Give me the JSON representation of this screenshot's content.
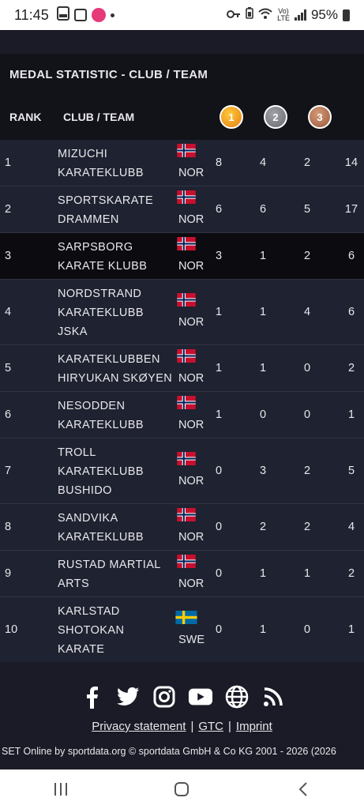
{
  "status": {
    "time": "11:45",
    "battery": "95%",
    "volte_line1": "Vo)",
    "volte_line2": "LTE"
  },
  "table": {
    "title": "MEDAL STATISTIC - CLUB / TEAM",
    "col_rank": "RANK",
    "col_club": "CLUB / TEAM",
    "medal_gold": "1",
    "medal_silver": "2",
    "medal_bronze": "3",
    "rows": [
      {
        "rank": "1",
        "club": "MIZUCHI KARATEKLUBB",
        "nation": "NOR",
        "gold": "8",
        "silver": "4",
        "bronze": "2",
        "total": "14"
      },
      {
        "rank": "2",
        "club": "SPORTSKARATE DRAMMEN",
        "nation": "NOR",
        "gold": "6",
        "silver": "6",
        "bronze": "5",
        "total": "17"
      },
      {
        "rank": "3",
        "club": "SARPSBORG KARATE KLUBB",
        "nation": "NOR",
        "gold": "3",
        "silver": "1",
        "bronze": "2",
        "total": "6"
      },
      {
        "rank": "4",
        "club": "NORDSTRAND KARATEKLUBB JSKA",
        "nation": "NOR",
        "gold": "1",
        "silver": "1",
        "bronze": "4",
        "total": "6"
      },
      {
        "rank": "5",
        "club": "KARATEKLUBBEN HIRYUKAN SKØYEN",
        "nation": "NOR",
        "gold": "1",
        "silver": "1",
        "bronze": "0",
        "total": "2"
      },
      {
        "rank": "6",
        "club": "NESODDEN KARATEKLUBB",
        "nation": "NOR",
        "gold": "1",
        "silver": "0",
        "bronze": "0",
        "total": "1"
      },
      {
        "rank": "7",
        "club": "TROLL KARATEKLUBB BUSHIDO",
        "nation": "NOR",
        "gold": "0",
        "silver": "3",
        "bronze": "2",
        "total": "5"
      },
      {
        "rank": "8",
        "club": "SANDVIKA KARATEKLUBB",
        "nation": "NOR",
        "gold": "0",
        "silver": "2",
        "bronze": "2",
        "total": "4"
      },
      {
        "rank": "9",
        "club": "RUSTAD MARTIAL ARTS",
        "nation": "NOR",
        "gold": "0",
        "silver": "1",
        "bronze": "1",
        "total": "2"
      },
      {
        "rank": "10",
        "club": "KARLSTAD SHOTOKAN KARATE",
        "nation": "SWE",
        "gold": "0",
        "silver": "1",
        "bronze": "0",
        "total": "1"
      }
    ]
  },
  "footer": {
    "social_icons": [
      "facebook-icon",
      "twitter-icon",
      "instagram-icon",
      "youtube-icon",
      "globe-icon",
      "rss-icon"
    ],
    "privacy": "Privacy statement",
    "gtc": "GTC",
    "imprint": "Imprint",
    "separator": "|",
    "copyright": "SET Online by sportdata.org © sportdata GmbH & Co KG 2001 - 2026 (2026"
  },
  "colors": {
    "background": "#1a1b26",
    "row": "#1f2230",
    "row_alt": "#0c0c10",
    "gold": "#f0a020",
    "silver": "#8a8a92",
    "bronze": "#b87050",
    "norway_red": "#c8102e",
    "norway_blue": "#00205b",
    "sweden_blue": "#006aa7",
    "sweden_yellow": "#fecc00"
  }
}
